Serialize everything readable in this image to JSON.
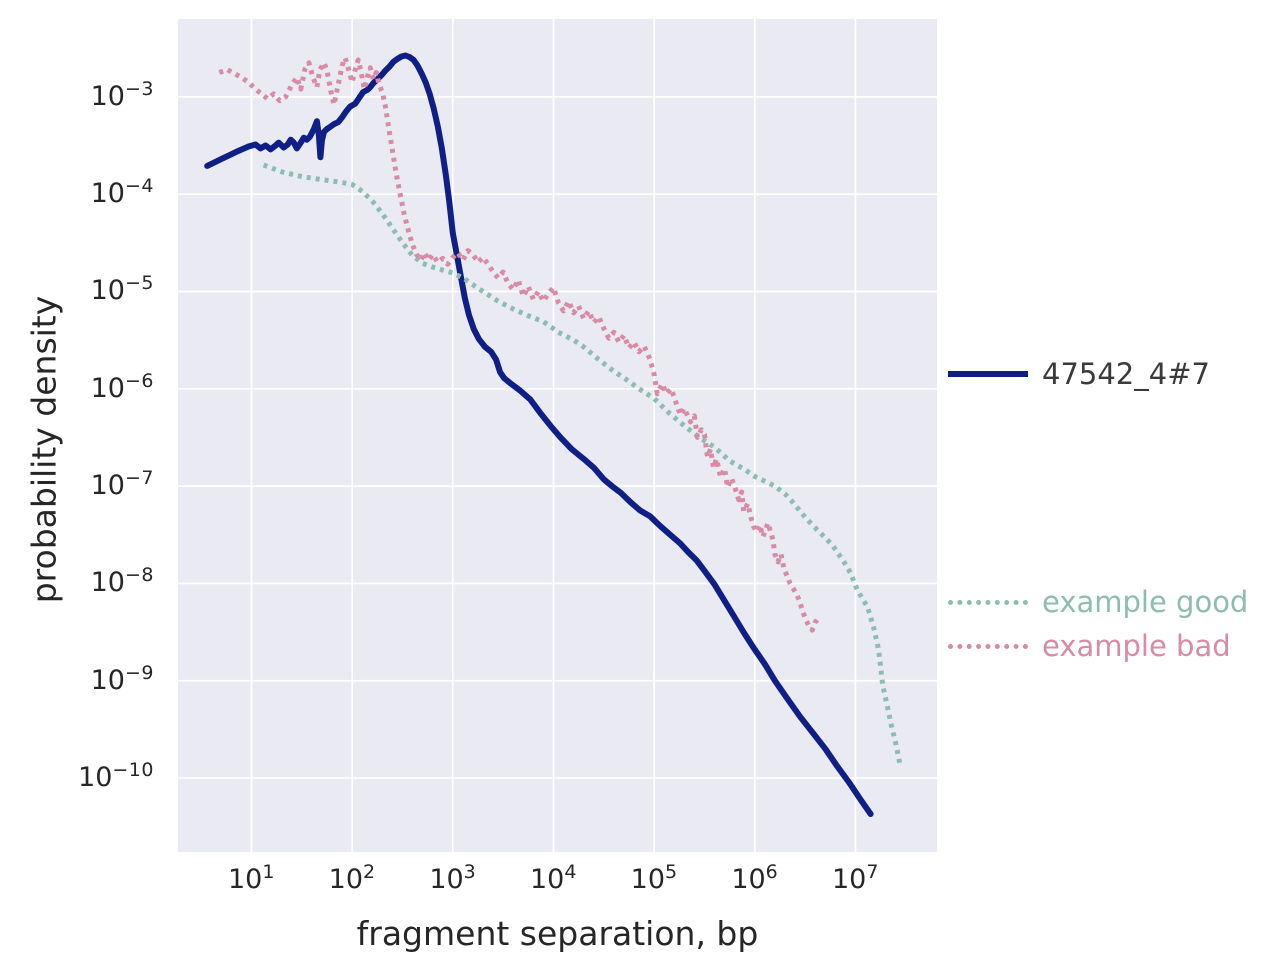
{
  "figure": {
    "background": "#ffffff",
    "plot_background": "#eaeaf2",
    "grid_color": "#ffffff",
    "text_color": "#262626"
  },
  "chart_data": {
    "type": "line",
    "x_scale": "log",
    "y_scale": "log",
    "title": "",
    "xlabel": "fragment separation, bp",
    "ylabel": "probability density",
    "grid": true,
    "legend_position": "outside-right",
    "xlim_log10": [
      0.27,
      7.81
    ],
    "ylim_log10": [
      -10.76,
      -2.2
    ],
    "x_tick_exponents": [
      1,
      2,
      3,
      4,
      5,
      6,
      7
    ],
    "y_tick_exponents": [
      -3,
      -4,
      -5,
      -6,
      -7,
      -8,
      -9,
      -10
    ],
    "series": [
      {
        "name": "47542_4#7",
        "color": "#101f85",
        "style": "solid",
        "line_width": 6,
        "legend_text_color": "#3a3a3a",
        "points_log10": [
          [
            0.56,
            -3.71
          ],
          [
            0.7,
            -3.64
          ],
          [
            0.84,
            -3.57
          ],
          [
            0.97,
            -3.51
          ],
          [
            1.04,
            -3.49
          ],
          [
            1.09,
            -3.53
          ],
          [
            1.14,
            -3.5
          ],
          [
            1.19,
            -3.54
          ],
          [
            1.24,
            -3.5
          ],
          [
            1.27,
            -3.47
          ],
          [
            1.32,
            -3.52
          ],
          [
            1.36,
            -3.49
          ],
          [
            1.39,
            -3.44
          ],
          [
            1.42,
            -3.47
          ],
          [
            1.45,
            -3.53
          ],
          [
            1.49,
            -3.47
          ],
          [
            1.52,
            -3.42
          ],
          [
            1.55,
            -3.44
          ],
          [
            1.58,
            -3.41
          ],
          [
            1.62,
            -3.33
          ],
          [
            1.65,
            -3.25
          ],
          [
            1.67,
            -3.4
          ],
          [
            1.685,
            -3.62
          ],
          [
            1.7,
            -3.45
          ],
          [
            1.72,
            -3.36
          ],
          [
            1.75,
            -3.33
          ],
          [
            1.78,
            -3.31
          ],
          [
            1.82,
            -3.28
          ],
          [
            1.86,
            -3.26
          ],
          [
            1.9,
            -3.21
          ],
          [
            1.94,
            -3.15
          ],
          [
            1.98,
            -3.1
          ],
          [
            2.03,
            -3.07
          ],
          [
            2.07,
            -3.01
          ],
          [
            2.11,
            -2.95
          ],
          [
            2.15,
            -2.93
          ],
          [
            2.18,
            -2.9
          ],
          [
            2.21,
            -2.86
          ],
          [
            2.25,
            -2.82
          ],
          [
            2.29,
            -2.78
          ],
          [
            2.33,
            -2.73
          ],
          [
            2.37,
            -2.69
          ],
          [
            2.41,
            -2.64
          ],
          [
            2.45,
            -2.61
          ],
          [
            2.49,
            -2.585
          ],
          [
            2.53,
            -2.575
          ],
          [
            2.57,
            -2.59
          ],
          [
            2.61,
            -2.62
          ],
          [
            2.65,
            -2.68
          ],
          [
            2.69,
            -2.76
          ],
          [
            2.73,
            -2.85
          ],
          [
            2.77,
            -2.97
          ],
          [
            2.81,
            -3.12
          ],
          [
            2.85,
            -3.3
          ],
          [
            2.89,
            -3.52
          ],
          [
            2.93,
            -3.8
          ],
          [
            2.965,
            -4.08
          ],
          [
            3.0,
            -4.4
          ],
          [
            3.04,
            -4.62
          ],
          [
            3.08,
            -4.85
          ],
          [
            3.12,
            -5.07
          ],
          [
            3.16,
            -5.24
          ],
          [
            3.21,
            -5.39
          ],
          [
            3.26,
            -5.49
          ],
          [
            3.32,
            -5.57
          ],
          [
            3.38,
            -5.62
          ],
          [
            3.43,
            -5.7
          ],
          [
            3.47,
            -5.83
          ],
          [
            3.51,
            -5.89
          ],
          [
            3.58,
            -5.95
          ],
          [
            3.67,
            -6.02
          ],
          [
            3.77,
            -6.11
          ],
          [
            3.87,
            -6.25
          ],
          [
            3.97,
            -6.38
          ],
          [
            4.07,
            -6.5
          ],
          [
            4.18,
            -6.62
          ],
          [
            4.3,
            -6.72
          ],
          [
            4.4,
            -6.81
          ],
          [
            4.5,
            -6.93
          ],
          [
            4.58,
            -7.0
          ],
          [
            4.67,
            -7.07
          ],
          [
            4.76,
            -7.16
          ],
          [
            4.86,
            -7.25
          ],
          [
            4.96,
            -7.31
          ],
          [
            5.06,
            -7.41
          ],
          [
            5.16,
            -7.5
          ],
          [
            5.26,
            -7.59
          ],
          [
            5.34,
            -7.68
          ],
          [
            5.42,
            -7.76
          ],
          [
            5.5,
            -7.87
          ],
          [
            5.6,
            -8.01
          ],
          [
            5.7,
            -8.18
          ],
          [
            5.8,
            -8.35
          ],
          [
            5.9,
            -8.52
          ],
          [
            6.0,
            -8.68
          ],
          [
            6.1,
            -8.83
          ],
          [
            6.2,
            -9.0
          ],
          [
            6.32,
            -9.18
          ],
          [
            6.45,
            -9.37
          ],
          [
            6.58,
            -9.54
          ],
          [
            6.7,
            -9.7
          ],
          [
            6.82,
            -9.88
          ],
          [
            6.94,
            -10.05
          ],
          [
            7.05,
            -10.22
          ],
          [
            7.15,
            -10.37
          ]
        ]
      },
      {
        "name": "example good",
        "color": "#8dbdb0",
        "style": "dotted",
        "line_width": 5,
        "legend_text_color": "#8dbdb0",
        "points_log10": [
          [
            1.12,
            -3.7
          ],
          [
            1.3,
            -3.77
          ],
          [
            1.5,
            -3.82
          ],
          [
            1.7,
            -3.85
          ],
          [
            1.9,
            -3.88
          ],
          [
            2.0,
            -3.9
          ],
          [
            2.1,
            -3.97
          ],
          [
            2.2,
            -4.07
          ],
          [
            2.3,
            -4.2
          ],
          [
            2.4,
            -4.35
          ],
          [
            2.5,
            -4.5
          ],
          [
            2.6,
            -4.63
          ],
          [
            2.7,
            -4.71
          ],
          [
            2.8,
            -4.75
          ],
          [
            2.9,
            -4.78
          ],
          [
            3.0,
            -4.81
          ],
          [
            3.1,
            -4.86
          ],
          [
            3.2,
            -4.93
          ],
          [
            3.3,
            -5.0
          ],
          [
            3.45,
            -5.1
          ],
          [
            3.6,
            -5.18
          ],
          [
            3.75,
            -5.25
          ],
          [
            3.9,
            -5.31
          ],
          [
            4.05,
            -5.42
          ],
          [
            4.2,
            -5.5
          ],
          [
            4.3,
            -5.57
          ],
          [
            4.45,
            -5.7
          ],
          [
            4.6,
            -5.82
          ],
          [
            4.73,
            -5.91
          ],
          [
            4.85,
            -6.0
          ],
          [
            5.0,
            -6.1
          ],
          [
            5.15,
            -6.25
          ],
          [
            5.3,
            -6.38
          ],
          [
            5.45,
            -6.5
          ],
          [
            5.6,
            -6.6
          ],
          [
            5.75,
            -6.74
          ],
          [
            5.9,
            -6.83
          ],
          [
            6.0,
            -6.9
          ],
          [
            6.1,
            -6.95
          ],
          [
            6.2,
            -7.0
          ],
          [
            6.3,
            -7.08
          ],
          [
            6.38,
            -7.17
          ],
          [
            6.5,
            -7.32
          ],
          [
            6.62,
            -7.45
          ],
          [
            6.7,
            -7.53
          ],
          [
            6.78,
            -7.62
          ],
          [
            6.88,
            -7.77
          ],
          [
            6.95,
            -7.89
          ],
          [
            7.02,
            -8.07
          ],
          [
            7.07,
            -8.16
          ],
          [
            7.12,
            -8.24
          ],
          [
            7.18,
            -8.45
          ],
          [
            7.23,
            -8.68
          ],
          [
            7.25,
            -8.85
          ],
          [
            7.27,
            -9.04
          ],
          [
            7.31,
            -9.23
          ],
          [
            7.35,
            -9.43
          ],
          [
            7.4,
            -9.64
          ],
          [
            7.44,
            -9.85
          ]
        ]
      },
      {
        "name": "example bad",
        "color": "#d78ba4",
        "style": "dotted",
        "line_width": 5,
        "legend_text_color": "#d78ba4",
        "points_log10": [
          [
            0.68,
            -2.75
          ],
          [
            0.76,
            -2.72
          ],
          [
            0.83,
            -2.76
          ],
          [
            0.9,
            -2.8
          ],
          [
            0.97,
            -2.85
          ],
          [
            1.04,
            -2.92
          ],
          [
            1.1,
            -2.97
          ],
          [
            1.16,
            -3.02
          ],
          [
            1.22,
            -2.97
          ],
          [
            1.28,
            -3.04
          ],
          [
            1.34,
            -3.0
          ],
          [
            1.4,
            -2.88
          ],
          [
            1.45,
            -2.8
          ],
          [
            1.49,
            -2.92
          ],
          [
            1.53,
            -2.72
          ],
          [
            1.57,
            -2.65
          ],
          [
            1.61,
            -2.8
          ],
          [
            1.65,
            -2.9
          ],
          [
            1.68,
            -2.72
          ],
          [
            1.72,
            -2.65
          ],
          [
            1.75,
            -2.73
          ],
          [
            1.79,
            -2.95
          ],
          [
            1.82,
            -3.08
          ],
          [
            1.86,
            -2.88
          ],
          [
            1.9,
            -2.68
          ],
          [
            1.93,
            -2.6
          ],
          [
            1.96,
            -2.7
          ],
          [
            2.0,
            -2.85
          ],
          [
            2.03,
            -2.72
          ],
          [
            2.06,
            -2.62
          ],
          [
            2.09,
            -2.75
          ],
          [
            2.12,
            -2.92
          ],
          [
            2.15,
            -2.8
          ],
          [
            2.18,
            -2.7
          ],
          [
            2.21,
            -2.82
          ],
          [
            2.24,
            -2.75
          ],
          [
            2.27,
            -2.88
          ],
          [
            2.3,
            -2.95
          ],
          [
            2.33,
            -3.1
          ],
          [
            2.36,
            -3.3
          ],
          [
            2.4,
            -3.55
          ],
          [
            2.44,
            -3.8
          ],
          [
            2.48,
            -4.02
          ],
          [
            2.52,
            -4.22
          ],
          [
            2.56,
            -4.38
          ],
          [
            2.6,
            -4.52
          ],
          [
            2.64,
            -4.62
          ],
          [
            2.68,
            -4.68
          ],
          [
            2.72,
            -4.6
          ],
          [
            2.76,
            -4.68
          ],
          [
            2.8,
            -4.62
          ],
          [
            2.85,
            -4.7
          ],
          [
            2.9,
            -4.66
          ],
          [
            2.95,
            -4.72
          ],
          [
            3.0,
            -4.65
          ],
          [
            3.05,
            -4.6
          ],
          [
            3.1,
            -4.68
          ],
          [
            3.15,
            -4.58
          ],
          [
            3.2,
            -4.62
          ],
          [
            3.25,
            -4.7
          ],
          [
            3.3,
            -4.65
          ],
          [
            3.35,
            -4.72
          ],
          [
            3.4,
            -4.8
          ],
          [
            3.45,
            -4.86
          ],
          [
            3.5,
            -4.8
          ],
          [
            3.55,
            -4.92
          ],
          [
            3.6,
            -4.98
          ],
          [
            3.65,
            -4.88
          ],
          [
            3.7,
            -5.05
          ],
          [
            3.75,
            -4.95
          ],
          [
            3.8,
            -5.08
          ],
          [
            3.85,
            -5.0
          ],
          [
            3.9,
            -5.1
          ],
          [
            3.95,
            -5.02
          ],
          [
            4.0,
            -4.96
          ],
          [
            4.05,
            -5.12
          ],
          [
            4.1,
            -5.2
          ],
          [
            4.15,
            -5.1
          ],
          [
            4.2,
            -5.22
          ],
          [
            4.25,
            -5.15
          ],
          [
            4.3,
            -5.28
          ],
          [
            4.35,
            -5.2
          ],
          [
            4.4,
            -5.32
          ],
          [
            4.45,
            -5.26
          ],
          [
            4.5,
            -5.38
          ],
          [
            4.55,
            -5.48
          ],
          [
            4.6,
            -5.42
          ],
          [
            4.65,
            -5.52
          ],
          [
            4.7,
            -5.45
          ],
          [
            4.75,
            -5.58
          ],
          [
            4.8,
            -5.52
          ],
          [
            4.85,
            -5.62
          ],
          [
            4.9,
            -5.56
          ],
          [
            4.96,
            -5.7
          ],
          [
            5.0,
            -5.85
          ],
          [
            5.03,
            -6.05
          ],
          [
            5.08,
            -5.95
          ],
          [
            5.12,
            -6.05
          ],
          [
            5.17,
            -6.0
          ],
          [
            5.22,
            -6.15
          ],
          [
            5.26,
            -6.27
          ],
          [
            5.3,
            -6.2
          ],
          [
            5.36,
            -6.34
          ],
          [
            5.4,
            -6.28
          ],
          [
            5.43,
            -6.5
          ],
          [
            5.47,
            -6.42
          ],
          [
            5.5,
            -6.47
          ],
          [
            5.53,
            -6.7
          ],
          [
            5.56,
            -6.62
          ],
          [
            5.59,
            -6.81
          ],
          [
            5.62,
            -6.72
          ],
          [
            5.66,
            -6.91
          ],
          [
            5.7,
            -6.82
          ],
          [
            5.73,
            -7.01
          ],
          [
            5.77,
            -6.92
          ],
          [
            5.81,
            -7.04
          ],
          [
            5.84,
            -7.14
          ],
          [
            5.87,
            -7.06
          ],
          [
            5.89,
            -7.26
          ],
          [
            5.93,
            -7.18
          ],
          [
            5.96,
            -7.32
          ],
          [
            5.99,
            -7.42
          ],
          [
            6.02,
            -7.47
          ],
          [
            6.05,
            -7.4
          ],
          [
            6.08,
            -7.52
          ],
          [
            6.11,
            -7.44
          ],
          [
            6.13,
            -7.38
          ],
          [
            6.16,
            -7.48
          ],
          [
            6.18,
            -7.55
          ],
          [
            6.2,
            -7.7
          ],
          [
            6.23,
            -7.78
          ],
          [
            6.26,
            -7.7
          ],
          [
            6.29,
            -7.85
          ],
          [
            6.32,
            -7.92
          ],
          [
            6.35,
            -8.0
          ],
          [
            6.38,
            -8.05
          ],
          [
            6.42,
            -8.12
          ],
          [
            6.45,
            -8.2
          ],
          [
            6.48,
            -8.3
          ],
          [
            6.51,
            -8.38
          ],
          [
            6.54,
            -8.44
          ],
          [
            6.57,
            -8.48
          ],
          [
            6.6,
            -8.4
          ],
          [
            6.63,
            -8.36
          ]
        ]
      }
    ]
  }
}
